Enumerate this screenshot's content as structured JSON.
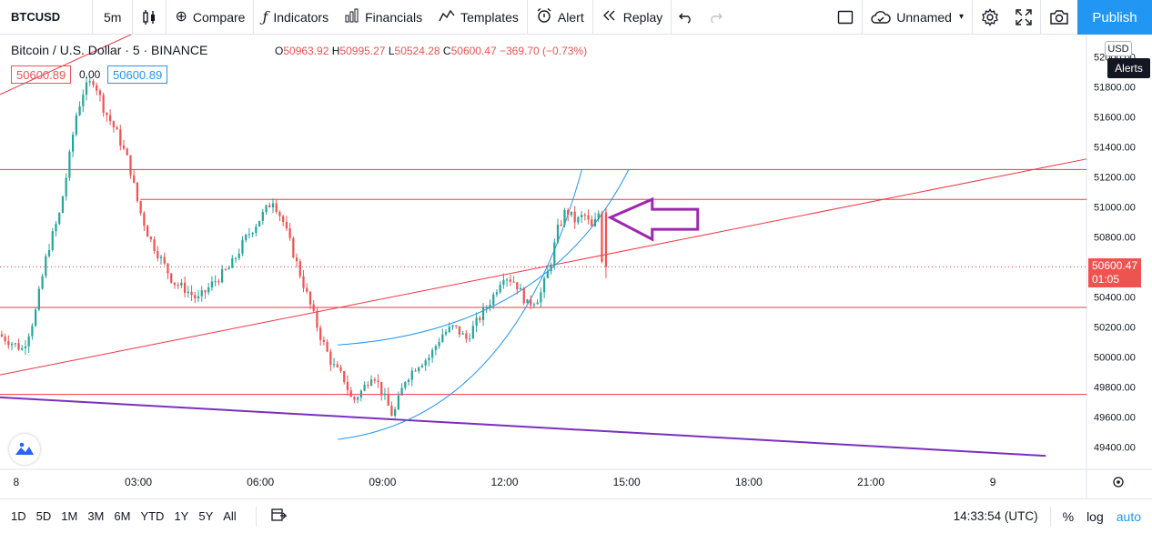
{
  "toolbar": {
    "symbol": "BTCUSD",
    "interval": "5m",
    "compare": "Compare",
    "indicators": "Indicators",
    "financials": "Financials",
    "templates": "Templates",
    "alert": "Alert",
    "replay": "Replay",
    "layout_name": "Unnamed",
    "publish": "Publish"
  },
  "legend": {
    "title": "Bitcoin / U.S. Dollar · 5 · BINANCE",
    "o_label": "O",
    "o": "50963.92",
    "h_label": "H",
    "h": "50995.27",
    "l_label": "L",
    "l": "50524.28",
    "c_label": "C",
    "c": "50600.47",
    "change": "−369.70 (−0.73%)",
    "bid": "50600.89",
    "spread": "0.00",
    "ask": "50600.89"
  },
  "price_axis": {
    "currency": "USD",
    "alerts": "Alerts",
    "last_price": "50600.47",
    "countdown": "01:05"
  },
  "bottom": {
    "ranges": [
      "1D",
      "5D",
      "1M",
      "3M",
      "6M",
      "YTD",
      "1Y",
      "5Y",
      "All"
    ],
    "clock": "14:33:54 (UTC)",
    "percent": "%",
    "log": "log",
    "auto": "auto"
  },
  "colors": {
    "up": "#26a69a",
    "down": "#ef5350",
    "drawing_red": "#f23645",
    "drawing_blue": "#2196f3",
    "drawing_purple": "#7b2fbe",
    "arrow_purple": "#9c27b0"
  },
  "chart_data": {
    "type": "candlestick",
    "title": "Bitcoin / U.S. Dollar · 5 · BINANCE",
    "xlabel": "",
    "ylabel": "",
    "x_ticks": [
      "8",
      "03:00",
      "06:00",
      "09:00",
      "12:00",
      "15:00",
      "18:00",
      "21:00",
      "9"
    ],
    "y_ticks": [
      52000,
      51800,
      51600,
      51400,
      51200,
      51000,
      50800,
      50600,
      50400,
      50200,
      50000,
      49800,
      49600,
      49400
    ],
    "ylim": [
      49250,
      52150
    ],
    "xlim_hours": [
      -0.4,
      26.3
    ],
    "ohlc_last": {
      "open": 50963.92,
      "high": 50995.27,
      "low": 50524.28,
      "close": 50600.47
    },
    "price_path": [
      [
        -0.4,
        50150
      ],
      [
        0.2,
        50050
      ],
      [
        0.5,
        50280
      ],
      [
        0.8,
        50700
      ],
      [
        1.1,
        50950
      ],
      [
        1.3,
        51250
      ],
      [
        1.5,
        51600
      ],
      [
        1.7,
        51780
      ],
      [
        1.95,
        51850
      ],
      [
        2.2,
        51650
      ],
      [
        2.5,
        51500
      ],
      [
        2.8,
        51300
      ],
      [
        3.05,
        51000
      ],
      [
        3.3,
        50800
      ],
      [
        3.6,
        50650
      ],
      [
        3.9,
        50500
      ],
      [
        4.2,
        50450
      ],
      [
        4.5,
        50380
      ],
      [
        4.9,
        50500
      ],
      [
        5.3,
        50600
      ],
      [
        5.7,
        50800
      ],
      [
        6.1,
        50950
      ],
      [
        6.35,
        51050
      ],
      [
        6.6,
        50900
      ],
      [
        6.9,
        50650
      ],
      [
        7.2,
        50400
      ],
      [
        7.5,
        50150
      ],
      [
        7.8,
        49950
      ],
      [
        8.1,
        49850
      ],
      [
        8.3,
        49700
      ],
      [
        8.55,
        49780
      ],
      [
        8.8,
        49900
      ],
      [
        9.05,
        49750
      ],
      [
        9.3,
        49600
      ],
      [
        9.6,
        49850
      ],
      [
        9.9,
        49950
      ],
      [
        10.2,
        50000
      ],
      [
        10.5,
        50150
      ],
      [
        10.8,
        50200
      ],
      [
        11.1,
        50120
      ],
      [
        11.4,
        50250
      ],
      [
        11.75,
        50400
      ],
      [
        12.0,
        50550
      ],
      [
        12.3,
        50500
      ],
      [
        12.6,
        50350
      ],
      [
        12.9,
        50400
      ],
      [
        13.15,
        50600
      ],
      [
        13.35,
        50850
      ],
      [
        13.55,
        50980
      ],
      [
        13.8,
        50900
      ],
      [
        14.0,
        50950
      ],
      [
        14.2,
        50850
      ],
      [
        14.35,
        50960
      ],
      [
        14.45,
        50600
      ]
    ],
    "drawings": {
      "horizontal_lines": [
        51250,
        51050,
        50330,
        49750
      ],
      "channel_upper": {
        "from": [
          -0.4,
          51750
        ],
        "to": [
          2.9,
          52160
        ]
      },
      "ascending_trendline": {
        "from": [
          -0.4,
          49880
        ],
        "to": [
          26.3,
          51320
        ]
      },
      "purple_trendline": {
        "from": [
          -0.4,
          49730
        ],
        "to": [
          25.3,
          49340
        ]
      },
      "arc_blue_outer": {
        "from": [
          7.9,
          50080
        ],
        "to": [
          15.05,
          51250
        ]
      },
      "arc_blue_inner": {
        "from": [
          7.9,
          49450
        ],
        "to": [
          13.9,
          51250
        ]
      },
      "last_price_line": 50600.47
    }
  }
}
